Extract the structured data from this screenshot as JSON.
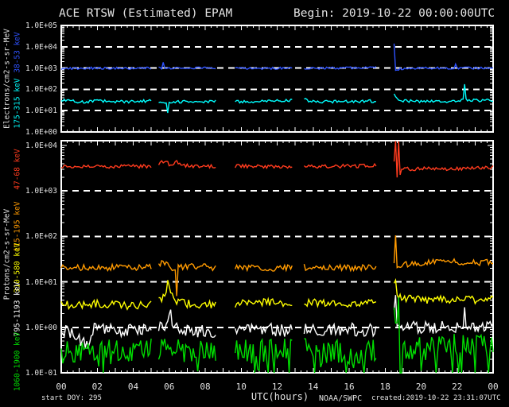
{
  "header": {
    "title": "ACE RTSW (Estimated) EPAM",
    "begin_label": "Begin: 2019-10-22 00:00:00UTC"
  },
  "footer": {
    "start_doy": "start DOY:  295",
    "xlabel": "UTC(hours)",
    "source": "NOAA/SWPC",
    "created": "created:2019-10-22 23:31:07UTC"
  },
  "colors": {
    "background": "#000000",
    "frame": "#ffffff",
    "text": "#e2e2e2",
    "gridline": "#ffffff"
  },
  "chart_data": {
    "type": "line",
    "x_unit": "UTC hours",
    "x_range": [
      0,
      24
    ],
    "x_tick_labels": [
      "00",
      "02",
      "04",
      "06",
      "08",
      "10",
      "12",
      "14",
      "16",
      "18",
      "20",
      "22",
      "00"
    ],
    "x_label_every_hours": 2,
    "x_minor_tick_hours": 0.3333,
    "grid": "dashed horizontal decade lines",
    "legend_position": "rotated labels left of axis",
    "data_gaps_hours": [
      [
        5.05,
        5.4
      ],
      [
        8.65,
        9.65
      ],
      [
        12.85,
        13.45
      ],
      [
        17.55,
        18.42
      ]
    ],
    "sample_step_hours": 0.08333,
    "panels": [
      {
        "name": "electrons",
        "ylabel": "Electrons/cm2-s-sr-MeV",
        "ylog_range": [
          0,
          5
        ],
        "ytick_decades": [
          5,
          4,
          3,
          2,
          1,
          0
        ],
        "ytick_labels": [
          "1.0E+05",
          "1.0E+04",
          "1.0E+03",
          "1.0E+02",
          "1.0E+01",
          "1.0E+00"
        ],
        "dashed_decades": [
          4,
          3,
          2,
          1
        ],
        "series": [
          {
            "label": "38-53 keV",
            "color": "#2e52ff",
            "noise_log": 0.05,
            "dropout_rate": 0,
            "anchors": [
              [
                0,
                950
              ],
              [
                2,
                1000
              ],
              [
                4,
                950
              ],
              [
                5,
                1000
              ],
              [
                5.5833,
                1000
              ],
              [
                5.6667,
                1900
              ],
              [
                5.75,
                900
              ],
              [
                6.2,
                1000
              ],
              [
                8,
                1050
              ],
              [
                10,
                1000
              ],
              [
                11,
                950
              ],
              [
                12.8,
                1000
              ],
              [
                13.5,
                950
              ],
              [
                15,
                1000
              ],
              [
                17.5,
                1050
              ],
              [
                18.42,
                1000
              ],
              [
                18.5,
                14000
              ],
              [
                18.5833,
                850
              ],
              [
                19,
                950
              ],
              [
                20,
                1000
              ],
              [
                21.8333,
                1000
              ],
              [
                21.9167,
                1600
              ],
              [
                22,
                1000
              ],
              [
                23,
                1000
              ],
              [
                24,
                1050
              ]
            ]
          },
          {
            "label": "175-315 keV",
            "color": "#00ffff",
            "noise_log": 0.07,
            "dropout_rate": 0,
            "anchors": [
              [
                0,
                32
              ],
              [
                1,
                26
              ],
              [
                2,
                28
              ],
              [
                4,
                26
              ],
              [
                5,
                30
              ],
              [
                5.8333,
                22
              ],
              [
                5.9167,
                9
              ],
              [
                6,
                26
              ],
              [
                7,
                26
              ],
              [
                8.6,
                28
              ],
              [
                9.7,
                26
              ],
              [
                11,
                27
              ],
              [
                12.8,
                30
              ],
              [
                13.5,
                38
              ],
              [
                13.8,
                26
              ],
              [
                15,
                26
              ],
              [
                16,
                27
              ],
              [
                17.5,
                28
              ],
              [
                18.5,
                55
              ],
              [
                18.8,
                30
              ],
              [
                19.5,
                28
              ],
              [
                21,
                27
              ],
              [
                22.3333,
                30
              ],
              [
                22.4167,
                160
              ],
              [
                22.5,
                32
              ],
              [
                23,
                30
              ],
              [
                24,
                30
              ]
            ]
          }
        ]
      },
      {
        "name": "protons",
        "ylabel": "Protons/cm2-s-sr-MeV",
        "ylog_range": [
          -1,
          4.105
        ],
        "ytick_decades": [
          4,
          3,
          2,
          1,
          0,
          -1
        ],
        "ytick_labels": [
          "1.0E+04",
          "1.0E+03",
          "1.0E+02",
          "1.0E+01",
          "1.0E+00",
          "1.0E-01"
        ],
        "dashed_decades": [
          3,
          2,
          1,
          0
        ],
        "series": [
          {
            "label": "47-68 keV",
            "color": "#ff3b1e",
            "noise_log": 0.04,
            "dropout_rate": 0,
            "anchors": [
              [
                0,
                3500
              ],
              [
                2,
                3400
              ],
              [
                4,
                3500
              ],
              [
                5,
                3450
              ],
              [
                5.8333,
                4600
              ],
              [
                6.0833,
                3600
              ],
              [
                6.4167,
                4300
              ],
              [
                6.6667,
                3600
              ],
              [
                8.6,
                3500
              ],
              [
                9.7,
                3500
              ],
              [
                12,
                3400
              ],
              [
                12.8,
                3500
              ],
              [
                13.5,
                3400
              ],
              [
                15,
                3500
              ],
              [
                17.5,
                3600
              ],
              [
                18.5,
                4500
              ],
              [
                18.5833,
                13000
              ],
              [
                18.6667,
                2100
              ],
              [
                18.75,
                12500
              ],
              [
                18.8333,
                2400
              ],
              [
                18.9167,
                3300
              ],
              [
                19.5,
                3000
              ],
              [
                20,
                3100
              ],
              [
                21,
                3000
              ],
              [
                22,
                3100
              ],
              [
                23,
                3200
              ],
              [
                24,
                3300
              ]
            ]
          },
          {
            "label": "115-195 keV",
            "color": "#ff9a00",
            "noise_log": 0.07,
            "dropout_rate": 0,
            "anchors": [
              [
                0,
                20
              ],
              [
                2,
                21
              ],
              [
                4,
                20
              ],
              [
                5,
                21
              ],
              [
                5.8333,
                27
              ],
              [
                6.0833,
                20
              ],
              [
                6.3333,
                20
              ],
              [
                6.4167,
                5.5
              ],
              [
                6.5,
                21
              ],
              [
                7.5,
                22
              ],
              [
                8.6,
                20
              ],
              [
                9.7,
                21
              ],
              [
                12,
                20
              ],
              [
                13.5,
                21
              ],
              [
                15,
                20
              ],
              [
                17.5,
                21
              ],
              [
                18.5,
                24
              ],
              [
                18.5833,
                100
              ],
              [
                18.6667,
                22
              ],
              [
                19,
                24
              ],
              [
                20,
                26
              ],
              [
                21,
                30
              ],
              [
                22,
                28
              ],
              [
                23,
                26
              ],
              [
                24,
                28
              ]
            ]
          },
          {
            "label": "310-580 keV",
            "color": "#ffff00",
            "noise_log": 0.09,
            "dropout_rate": 0,
            "anchors": [
              [
                0,
                3.2
              ],
              [
                1,
                3
              ],
              [
                2,
                3.3
              ],
              [
                4,
                3
              ],
              [
                5,
                3.2
              ],
              [
                5.8333,
                5
              ],
              [
                5.9167,
                11
              ],
              [
                6.0833,
                6
              ],
              [
                6.5,
                3.5
              ],
              [
                7,
                3.3
              ],
              [
                8.6,
                3.2
              ],
              [
                9.7,
                3.3
              ],
              [
                11,
                3.5
              ],
              [
                12.8,
                3.4
              ],
              [
                13.5,
                3.6
              ],
              [
                15,
                3.3
              ],
              [
                17.5,
                3.3
              ],
              [
                18.5,
                8
              ],
              [
                18.5833,
                12
              ],
              [
                18.6667,
                5.5
              ],
              [
                19,
                4.5
              ],
              [
                20,
                4
              ],
              [
                21,
                4.2
              ],
              [
                22,
                4
              ],
              [
                23,
                4.1
              ],
              [
                24,
                4.2
              ]
            ]
          },
          {
            "label": "795-1193 keV",
            "color": "#ffffff",
            "noise_log": 0.14,
            "dropout_rate": 0,
            "anchors": [
              [
                0,
                0.85
              ],
              [
                0.8,
                0.7
              ],
              [
                1.4,
                0.4
              ],
              [
                1.8,
                0.9
              ],
              [
                3,
                0.85
              ],
              [
                4,
                0.9
              ],
              [
                5,
                0.85
              ],
              [
                5.9167,
                1.1
              ],
              [
                6.0833,
                2.6
              ],
              [
                6.1667,
                1
              ],
              [
                7,
                0.85
              ],
              [
                8.6,
                0.8
              ],
              [
                9.7,
                0.85
              ],
              [
                11,
                0.9
              ],
              [
                12.8,
                0.85
              ],
              [
                13.5,
                0.9
              ],
              [
                15,
                0.85
              ],
              [
                16,
                0.9
              ],
              [
                17.5,
                0.85
              ],
              [
                18.5,
                2.2
              ],
              [
                18.5833,
                3.8
              ],
              [
                18.6667,
                1.1
              ],
              [
                19,
                1
              ],
              [
                20,
                0.95
              ],
              [
                21,
                1
              ],
              [
                22.3333,
                1.05
              ],
              [
                22.4167,
                2.4
              ],
              [
                22.5,
                1
              ],
              [
                23.5,
                1.1
              ],
              [
                24,
                1.2
              ]
            ]
          },
          {
            "label": "1060-1900 keV",
            "color": "#00dd00",
            "noise_log": 0.28,
            "dropout_rate": 0.12,
            "anchors": [
              [
                0,
                0.28
              ],
              [
                1,
                0.3
              ],
              [
                2,
                0.26
              ],
              [
                3,
                0.3
              ],
              [
                4,
                0.28
              ],
              [
                5,
                0.3
              ],
              [
                6,
                0.32
              ],
              [
                7,
                0.3
              ],
              [
                8.6,
                0.28
              ],
              [
                9.7,
                0.3
              ],
              [
                11,
                0.28
              ],
              [
                12.8,
                0.3
              ],
              [
                13.5,
                0.32
              ],
              [
                15,
                0.3
              ],
              [
                16,
                0.28
              ],
              [
                17.5,
                0.28
              ],
              [
                18.5,
                1.5
              ],
              [
                18.5833,
                9
              ],
              [
                18.6667,
                1.2
              ],
              [
                18.75,
                6.5
              ],
              [
                18.8333,
                0.6
              ],
              [
                19,
                0.4
              ],
              [
                20,
                0.35
              ],
              [
                21,
                0.4
              ],
              [
                22,
                0.38
              ],
              [
                23,
                0.4
              ],
              [
                24,
                0.38
              ]
            ]
          }
        ]
      }
    ]
  }
}
